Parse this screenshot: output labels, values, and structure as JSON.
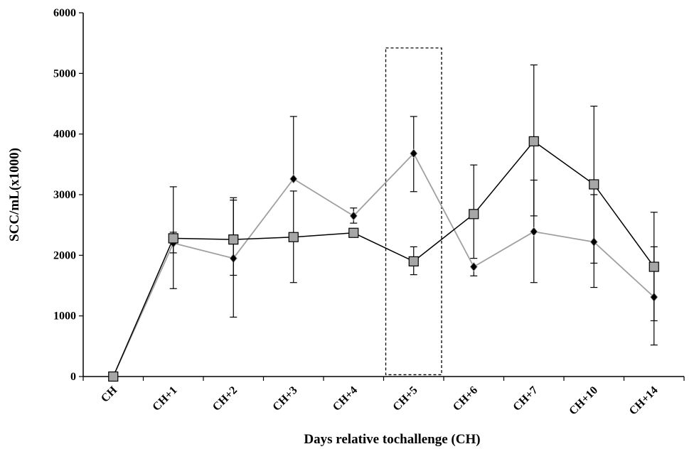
{
  "chart_data": {
    "type": "line",
    "title": "",
    "xlabel": "Days relative tochallenge (CH)",
    "ylabel": "SCC/mL(x1000)",
    "categories": [
      "CH",
      "CH+1",
      "CH+2",
      "CH+3",
      "CH+4",
      "CH+5",
      "CH+6",
      "CH+7",
      "CH+10",
      "CH+14"
    ],
    "ylim": [
      0,
      6000
    ],
    "yticks": [
      0,
      1000,
      2000,
      3000,
      4000,
      5000,
      6000
    ],
    "grid": false,
    "legend": "none",
    "series": [
      {
        "marker": "square",
        "color": "#000000",
        "marker_fill": "#a6a6a6",
        "values": [
          0,
          2280,
          2260,
          2300,
          2370,
          1900,
          2680,
          3880,
          3170,
          1810
        ],
        "error_low": [
          null,
          1450,
          1670,
          1550,
          null,
          1680,
          1950,
          2650,
          1870,
          920
        ],
        "error_high": [
          null,
          3130,
          2950,
          3060,
          null,
          2140,
          3490,
          5140,
          4460,
          2710
        ]
      },
      {
        "marker": "diamond",
        "color": "#a0a0a0",
        "marker_fill": "#000000",
        "values": [
          0,
          2200,
          1950,
          3260,
          2650,
          3680,
          1810,
          2390,
          2220,
          1310
        ],
        "error_low": [
          null,
          2040,
          980,
          null,
          2530,
          3050,
          1660,
          1550,
          1470,
          520
        ],
        "error_high": [
          null,
          2380,
          2910,
          4290,
          2780,
          4290,
          null,
          3240,
          3000,
          2140
        ]
      }
    ],
    "annotations": [
      {
        "type": "dashed-box",
        "category": "CH+5",
        "y_from": 30,
        "y_to": 5420
      }
    ]
  }
}
